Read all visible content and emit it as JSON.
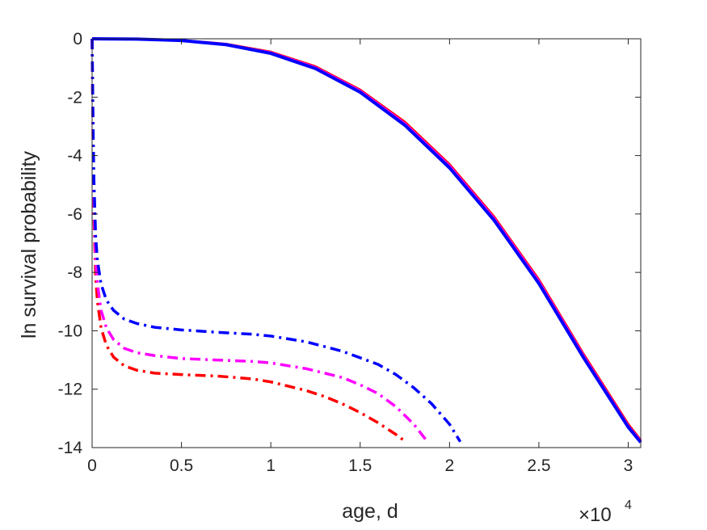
{
  "chart_data": {
    "type": "line",
    "title": "",
    "xlabel": "age, d",
    "ylabel": "ln survival probability",
    "x_exponent_label": {
      "base": "×10",
      "power": "4"
    },
    "xlim": [
      0,
      3.07
    ],
    "ylim": [
      -14,
      0
    ],
    "xticks": [
      0,
      0.5,
      1,
      1.5,
      2,
      2.5,
      3
    ],
    "xtick_labels": [
      "0",
      "0.5",
      "1",
      "1.5",
      "2",
      "2.5",
      "3"
    ],
    "yticks": [
      0,
      -2,
      -4,
      -6,
      -8,
      -10,
      -12,
      -14
    ],
    "ytick_labels": [
      "0",
      "-2",
      "-4",
      "-6",
      "-8",
      "-10",
      "-12",
      "-14"
    ],
    "grid": false,
    "legend": "none",
    "series": [
      {
        "color": "#ff0000",
        "style": "solid",
        "x": [
          0,
          0.25,
          0.5,
          0.75,
          1.0,
          1.25,
          1.5,
          1.75,
          2.0,
          2.25,
          2.5,
          2.75,
          3.0,
          3.07
        ],
        "y": [
          0,
          -0.01,
          -0.05,
          -0.18,
          -0.45,
          -0.95,
          -1.75,
          -2.85,
          -4.3,
          -6.1,
          -8.25,
          -10.8,
          -13.2,
          -13.75
        ]
      },
      {
        "color": "#ff00ff",
        "style": "solid",
        "x": [
          0,
          0.25,
          0.5,
          0.75,
          1.0,
          1.25,
          1.5,
          1.75,
          2.0,
          2.25,
          2.5,
          2.75,
          3.0,
          3.07
        ],
        "y": [
          0,
          -0.01,
          -0.05,
          -0.19,
          -0.47,
          -0.98,
          -1.78,
          -2.9,
          -4.35,
          -6.15,
          -8.3,
          -10.85,
          -13.25,
          -13.78
        ]
      },
      {
        "color": "#0000ff",
        "style": "solid",
        "x": [
          0,
          0.25,
          0.5,
          0.75,
          1.0,
          1.25,
          1.5,
          1.75,
          2.0,
          2.25,
          2.5,
          2.75,
          3.0,
          3.07
        ],
        "y": [
          0,
          -0.01,
          -0.06,
          -0.2,
          -0.5,
          -1.02,
          -1.83,
          -2.96,
          -4.42,
          -6.22,
          -8.38,
          -10.92,
          -13.3,
          -13.82
        ]
      },
      {
        "color": "#ff0000",
        "style": "dashdot",
        "x": [
          0,
          0.005,
          0.01,
          0.02,
          0.03,
          0.05,
          0.08,
          0.12,
          0.18,
          0.25,
          0.35,
          0.5,
          0.7,
          0.9,
          1.0,
          1.1,
          1.2,
          1.3,
          1.4,
          1.5,
          1.6,
          1.7,
          1.75
        ],
        "y": [
          0,
          -3.5,
          -6.0,
          -8.2,
          -9.0,
          -9.9,
          -10.5,
          -10.9,
          -11.2,
          -11.35,
          -11.45,
          -11.5,
          -11.55,
          -11.65,
          -11.75,
          -11.9,
          -12.05,
          -12.25,
          -12.5,
          -12.8,
          -13.15,
          -13.55,
          -13.78
        ]
      },
      {
        "color": "#ff00ff",
        "style": "dashdot",
        "x": [
          0,
          0.005,
          0.01,
          0.02,
          0.03,
          0.05,
          0.08,
          0.12,
          0.18,
          0.25,
          0.35,
          0.5,
          0.7,
          0.9,
          1.0,
          1.2,
          1.4,
          1.5,
          1.6,
          1.7,
          1.8,
          1.87
        ],
        "y": [
          0,
          -3.2,
          -5.5,
          -7.6,
          -8.4,
          -9.3,
          -9.9,
          -10.3,
          -10.6,
          -10.75,
          -10.85,
          -10.95,
          -11.0,
          -11.05,
          -11.1,
          -11.3,
          -11.6,
          -11.85,
          -12.15,
          -12.6,
          -13.2,
          -13.75
        ]
      },
      {
        "color": "#0000ff",
        "style": "dashdot",
        "x": [
          0,
          0.005,
          0.01,
          0.02,
          0.03,
          0.05,
          0.08,
          0.12,
          0.18,
          0.25,
          0.35,
          0.5,
          0.7,
          0.9,
          1.0,
          1.2,
          1.4,
          1.6,
          1.7,
          1.8,
          1.9,
          2.0,
          2.06
        ],
        "y": [
          0,
          -2.8,
          -4.8,
          -6.8,
          -7.6,
          -8.4,
          -8.95,
          -9.3,
          -9.6,
          -9.75,
          -9.88,
          -9.97,
          -10.05,
          -10.12,
          -10.18,
          -10.38,
          -10.7,
          -11.15,
          -11.5,
          -11.95,
          -12.5,
          -13.2,
          -13.8
        ]
      }
    ]
  }
}
